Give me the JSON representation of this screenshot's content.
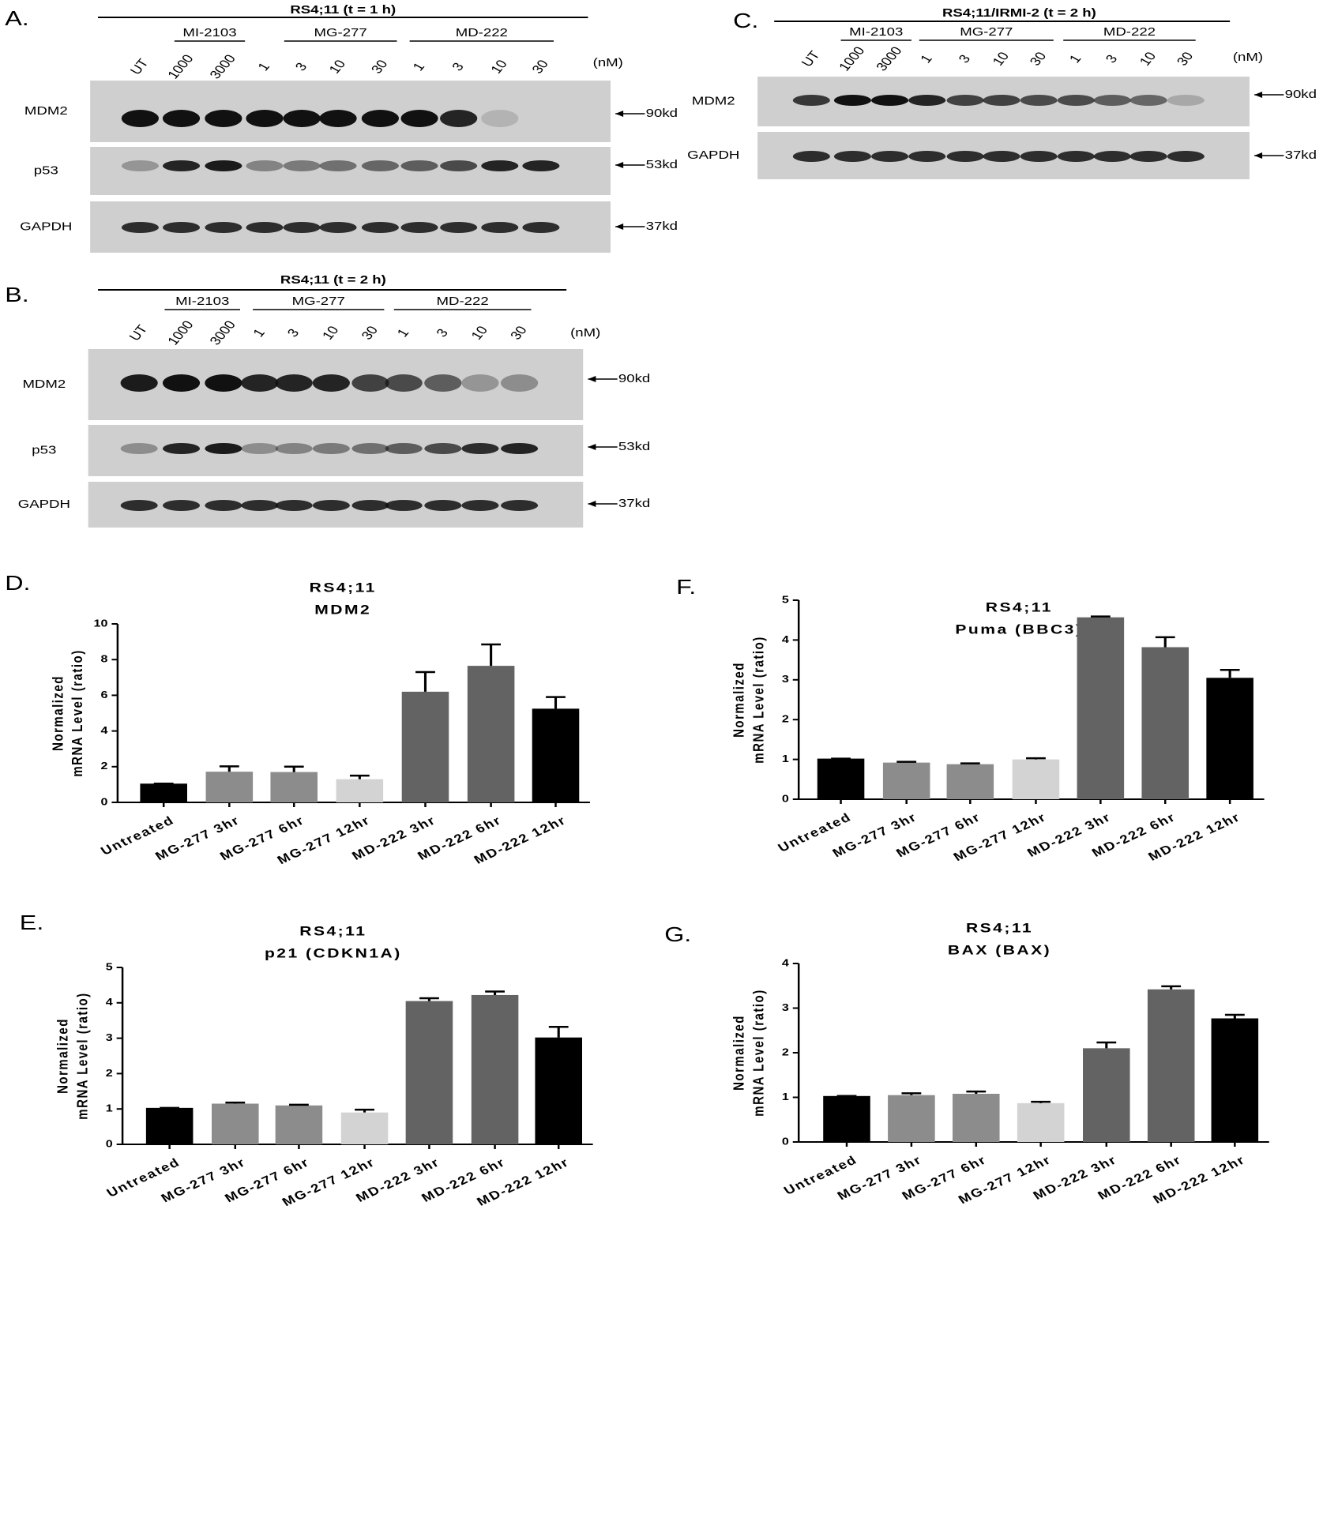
{
  "blots": [
    {
      "label": "A.",
      "title": "RS4;11 (t = 1 h)",
      "groups": [
        {
          "name": "MI-2103"
        },
        {
          "name": "MG-277"
        },
        {
          "name": "MD-222"
        }
      ],
      "lanes": [
        "UT",
        "1000",
        "3000",
        "1",
        "3",
        "10",
        "30",
        "1",
        "3",
        "10",
        "30"
      ],
      "unit": "(nM)",
      "rows": [
        {
          "name": "MDM2",
          "marker": "90kd"
        },
        {
          "name": "p53",
          "marker": "53kd"
        },
        {
          "name": "GAPDH",
          "marker": "37kd"
        }
      ]
    },
    {
      "label": "C.",
      "title": "RS4;11/IRMI-2  (t = 2 h)",
      "groups": [
        {
          "name": "MI-2103"
        },
        {
          "name": "MG-277"
        },
        {
          "name": "MD-222"
        }
      ],
      "lanes": [
        "UT",
        "1000",
        "3000",
        "1",
        "3",
        "10",
        "30",
        "1",
        "3",
        "10",
        "30"
      ],
      "unit": "(nM)",
      "rows": [
        {
          "name": "MDM2",
          "marker": "90kd"
        },
        {
          "name": "GAPDH",
          "marker": "37kd"
        }
      ]
    },
    {
      "label": "B.",
      "title": "RS4;11 (t = 2 h)",
      "groups": [
        {
          "name": "MI-2103"
        },
        {
          "name": "MG-277"
        },
        {
          "name": "MD-222"
        }
      ],
      "lanes": [
        "UT",
        "1000",
        "3000",
        "1",
        "3",
        "10",
        "30",
        "1",
        "3",
        "10",
        "30"
      ],
      "unit": "(nM)",
      "rows": [
        {
          "name": "MDM2",
          "marker": "90kd"
        },
        {
          "name": "p53",
          "marker": "53kd"
        },
        {
          "name": "GAPDH",
          "marker": "37kd"
        }
      ]
    }
  ],
  "chart_data": [
    {
      "type": "bar",
      "label": "D.",
      "title": "RS4;11",
      "subtitle": "MDM2",
      "ylabel": [
        "Normalized",
        "mRNA Level (ratio)"
      ],
      "categories": [
        "Untreated",
        "MG-277 3hr",
        "MG-277 6hr",
        "MG-277 12hr",
        "MD-222 3hr",
        "MD-222 6hr",
        "MD-222 12hr"
      ],
      "values": [
        1.05,
        1.72,
        1.7,
        1.3,
        6.2,
        7.65,
        5.25
      ],
      "errors": [
        0,
        0.3,
        0.3,
        0.2,
        1.1,
        1.2,
        0.65
      ],
      "colors": [
        "#000000",
        "#8c8c8c",
        "#8c8c8c",
        "#d3d3d3",
        "#636363",
        "#636363",
        "#000000"
      ],
      "ylim": [
        0,
        10
      ],
      "yticks": [
        0,
        2,
        4,
        6,
        8,
        10
      ]
    },
    {
      "type": "bar",
      "label": "F.",
      "title": "RS4;11",
      "subtitle": "Puma (BBC3)",
      "ylabel": [
        "Normalized",
        "mRNA Level (ratio)"
      ],
      "categories": [
        "Untreated",
        "MG-277 3hr",
        "MG-277 6hr",
        "MG-277 12hr",
        "MD-222 3hr",
        "MD-222 6hr",
        "MD-222 12hr"
      ],
      "values": [
        1.02,
        0.92,
        0.88,
        1.0,
        4.57,
        3.82,
        3.05
      ],
      "errors": [
        0,
        0.02,
        0.02,
        0.03,
        0.02,
        0.25,
        0.2
      ],
      "colors": [
        "#000000",
        "#8c8c8c",
        "#8c8c8c",
        "#d3d3d3",
        "#636363",
        "#636363",
        "#000000"
      ],
      "ylim": [
        0,
        5
      ],
      "yticks": [
        0,
        1,
        2,
        3,
        4,
        5
      ]
    },
    {
      "type": "bar",
      "label": "E.",
      "title": "RS4;11",
      "subtitle": "p21 (CDKN1A)",
      "ylabel": [
        "Normalized",
        "mRNA Level (ratio)"
      ],
      "categories": [
        "Untreated",
        "MG-277 3hr",
        "MG-277 6hr",
        "MG-277 12hr",
        "MD-222 3hr",
        "MD-222 6hr",
        "MD-222 12hr"
      ],
      "values": [
        1.03,
        1.15,
        1.1,
        0.9,
        4.05,
        4.22,
        3.02
      ],
      "errors": [
        0,
        0.03,
        0.02,
        0.08,
        0.08,
        0.1,
        0.3
      ],
      "colors": [
        "#000000",
        "#8c8c8c",
        "#8c8c8c",
        "#d3d3d3",
        "#636363",
        "#636363",
        "#000000"
      ],
      "ylim": [
        0,
        5
      ],
      "yticks": [
        0,
        1,
        2,
        3,
        4,
        5
      ]
    },
    {
      "type": "bar",
      "label": "G.",
      "title": "RS4;11",
      "subtitle": "BAX (BAX)",
      "ylabel": [
        "Normalized",
        "mRNA Level (ratio)"
      ],
      "categories": [
        "Untreated",
        "MG-277 3hr",
        "MG-277 6hr",
        "MG-277 12hr",
        "MD-222 3hr",
        "MD-222 6hr",
        "MD-222 12hr"
      ],
      "values": [
        1.03,
        1.05,
        1.08,
        0.87,
        2.1,
        3.42,
        2.77
      ],
      "errors": [
        0,
        0.04,
        0.05,
        0.03,
        0.13,
        0.07,
        0.08
      ],
      "colors": [
        "#000000",
        "#8c8c8c",
        "#8c8c8c",
        "#d3d3d3",
        "#636363",
        "#636363",
        "#000000"
      ],
      "ylim": [
        0,
        4
      ],
      "yticks": [
        0,
        1,
        2,
        3,
        4
      ]
    }
  ]
}
